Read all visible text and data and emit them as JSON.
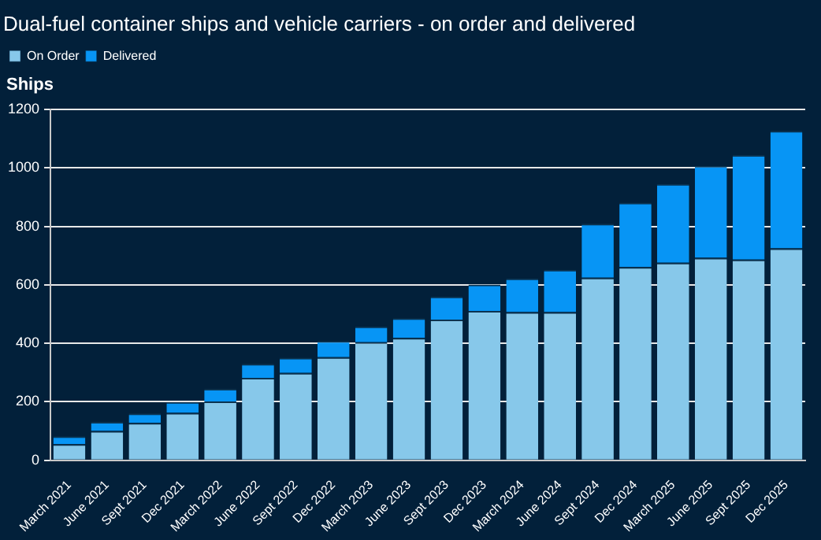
{
  "chart_data": {
    "type": "bar",
    "title": "Dual-fuel container ships and vehicle carriers - on order and delivered",
    "ylabel": "Ships",
    "categories": [
      "March 2021",
      "June 2021",
      "Sept 2021",
      "Dec 2021",
      "March 2022",
      "June 2022",
      "Sept 2022",
      "Dec 2022",
      "March 2023",
      "June 2023",
      "Sept 2023",
      "Dec 2023",
      "March 2024",
      "June 2024",
      "Sept 2024",
      "Dec 2024",
      "March 2025",
      "June 2025",
      "Sept 2025",
      "Dec 2025"
    ],
    "series": [
      {
        "name": "On Order",
        "color": "#87c8ea",
        "values": [
          55,
          100,
          128,
          162,
          201,
          282,
          299,
          353,
          404,
          419,
          481,
          511,
          507,
          507,
          625,
          661,
          676,
          693,
          687,
          725
        ]
      },
      {
        "name": "Delivered",
        "color": "#0795f5",
        "values": [
          27,
          31,
          32,
          37,
          43,
          48,
          52,
          55,
          54,
          67,
          79,
          90,
          115,
          145,
          184,
          220,
          269,
          314,
          357,
          402
        ]
      }
    ],
    "stacked": true,
    "ylim": [
      0,
      1200
    ],
    "yticks": [
      0,
      200,
      400,
      600,
      800,
      1000,
      1200
    ],
    "grid": "y",
    "legend": "top left"
  }
}
